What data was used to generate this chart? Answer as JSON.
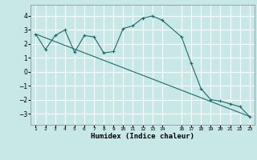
{
  "bg_color": "#c8e8e8",
  "grid_color": "#ffffff",
  "line_color": "#1a6b6b",
  "x_ticks": [
    1,
    2,
    3,
    4,
    5,
    6,
    7,
    8,
    9,
    10,
    11,
    12,
    13,
    14,
    16,
    17,
    18,
    19,
    20,
    21,
    22,
    23
  ],
  "x_label": "Humidex (Indice chaleur)",
  "ylim": [
    -3.8,
    4.8
  ],
  "yticks": [
    -3,
    -2,
    -1,
    0,
    1,
    2,
    3,
    4
  ],
  "curve1_x": [
    1,
    2,
    3,
    4,
    5,
    6,
    7,
    8,
    9,
    10,
    11,
    12,
    13,
    14,
    16,
    17,
    18,
    19,
    20,
    21,
    22,
    23
  ],
  "curve1_y": [
    2.7,
    1.6,
    2.6,
    3.0,
    1.4,
    2.6,
    2.5,
    1.35,
    1.45,
    3.1,
    3.3,
    3.85,
    4.0,
    3.7,
    2.5,
    0.6,
    -1.2,
    -2.0,
    -2.1,
    -2.3,
    -2.5,
    -3.2
  ],
  "curve2_x": [
    1,
    23
  ],
  "curve2_y": [
    2.7,
    -3.2
  ],
  "title": ""
}
